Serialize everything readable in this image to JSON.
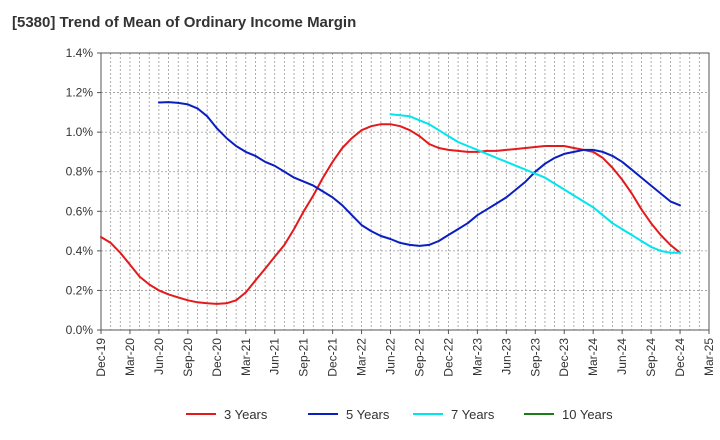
{
  "chart_data": {
    "type": "line",
    "title": "[5380]  Trend of Mean of Ordinary Income Margin",
    "xlabel": "",
    "ylabel": "",
    "ylim": [
      0,
      0.014
    ],
    "y_ticks": [
      0,
      0.002,
      0.004,
      0.006,
      0.008,
      0.01,
      0.012,
      0.014
    ],
    "y_tick_labels": [
      "0.0%",
      "0.2%",
      "0.4%",
      "0.6%",
      "0.8%",
      "1.0%",
      "1.2%",
      "1.4%"
    ],
    "x_tick_labels": [
      "Dec-19",
      "Mar-20",
      "Jun-20",
      "Sep-20",
      "Dec-20",
      "Mar-21",
      "Jun-21",
      "Sep-21",
      "Dec-21",
      "Mar-22",
      "Jun-22",
      "Sep-22",
      "Dec-22",
      "Mar-23",
      "Jun-23",
      "Sep-23",
      "Dec-23",
      "Mar-24",
      "Jun-24",
      "Sep-24",
      "Dec-24",
      "Mar-25"
    ],
    "grid": true,
    "legend_position": "bottom",
    "series": [
      {
        "name": "3 Years",
        "color": "#e31a1c",
        "x": [
          "Dec-19",
          "Jan-20",
          "Feb-20",
          "Mar-20",
          "Apr-20",
          "May-20",
          "Jun-20",
          "Jul-20",
          "Aug-20",
          "Sep-20",
          "Oct-20",
          "Nov-20",
          "Dec-20",
          "Jan-21",
          "Feb-21",
          "Mar-21",
          "Apr-21",
          "May-21",
          "Jun-21",
          "Jul-21",
          "Aug-21",
          "Sep-21",
          "Oct-21",
          "Nov-21",
          "Dec-21",
          "Jan-22",
          "Feb-22",
          "Mar-22",
          "Apr-22",
          "May-22",
          "Jun-22",
          "Jul-22",
          "Aug-22",
          "Sep-22",
          "Oct-22",
          "Nov-22",
          "Dec-22",
          "Jan-23",
          "Feb-23",
          "Mar-23",
          "Apr-23",
          "May-23",
          "Jun-23",
          "Jul-23",
          "Aug-23",
          "Sep-23",
          "Oct-23",
          "Nov-23",
          "Dec-23",
          "Jan-24",
          "Feb-24",
          "Mar-24",
          "Apr-24",
          "May-24",
          "Jun-24",
          "Jul-24",
          "Aug-24",
          "Sep-24",
          "Oct-24",
          "Nov-24",
          "Dec-24"
        ],
        "values": [
          0.0047,
          0.0044,
          0.0039,
          0.0033,
          0.0027,
          0.0023,
          0.002,
          0.0018,
          0.00165,
          0.0015,
          0.0014,
          0.00135,
          0.00132,
          0.00135,
          0.0015,
          0.0019,
          0.0025,
          0.0031,
          0.0037,
          0.0043,
          0.0051,
          0.006,
          0.0068,
          0.0077,
          0.0085,
          0.0092,
          0.0097,
          0.0101,
          0.0103,
          0.0104,
          0.0104,
          0.0103,
          0.0101,
          0.0098,
          0.0094,
          0.0092,
          0.0091,
          0.00905,
          0.009,
          0.009,
          0.00905,
          0.00905,
          0.0091,
          0.00915,
          0.0092,
          0.00925,
          0.0093,
          0.0093,
          0.0093,
          0.0092,
          0.0091,
          0.009,
          0.0087,
          0.0082,
          0.0076,
          0.0069,
          0.0061,
          0.0054,
          0.0048,
          0.0043,
          0.0039
        ]
      },
      {
        "name": "5 Years",
        "color": "#0a1fbf",
        "x": [
          "Jun-20",
          "Jul-20",
          "Aug-20",
          "Sep-20",
          "Oct-20",
          "Nov-20",
          "Dec-20",
          "Jan-21",
          "Feb-21",
          "Mar-21",
          "Apr-21",
          "May-21",
          "Jun-21",
          "Jul-21",
          "Aug-21",
          "Sep-21",
          "Oct-21",
          "Nov-21",
          "Dec-21",
          "Jan-22",
          "Feb-22",
          "Mar-22",
          "Apr-22",
          "May-22",
          "Jun-22",
          "Jul-22",
          "Aug-22",
          "Sep-22",
          "Oct-22",
          "Nov-22",
          "Dec-22",
          "Jan-23",
          "Feb-23",
          "Mar-23",
          "Apr-23",
          "May-23",
          "Jun-23",
          "Jul-23",
          "Aug-23",
          "Sep-23",
          "Oct-23",
          "Nov-23",
          "Dec-23",
          "Jan-24",
          "Feb-24",
          "Mar-24",
          "Apr-24",
          "May-24",
          "Jun-24",
          "Jul-24",
          "Aug-24",
          "Sep-24",
          "Oct-24",
          "Nov-24",
          "Dec-24"
        ],
        "values": [
          0.0115,
          0.01152,
          0.01148,
          0.0114,
          0.0112,
          0.0108,
          0.0102,
          0.0097,
          0.0093,
          0.009,
          0.0088,
          0.0085,
          0.0083,
          0.008,
          0.0077,
          0.0075,
          0.0073,
          0.007,
          0.0067,
          0.0063,
          0.0058,
          0.0053,
          0.005,
          0.00475,
          0.0046,
          0.0044,
          0.0043,
          0.00425,
          0.0043,
          0.0045,
          0.0048,
          0.0051,
          0.0054,
          0.0058,
          0.0061,
          0.0064,
          0.0067,
          0.0071,
          0.0075,
          0.008,
          0.0084,
          0.0087,
          0.0089,
          0.009,
          0.0091,
          0.0091,
          0.009,
          0.0088,
          0.0085,
          0.0081,
          0.0077,
          0.0073,
          0.0069,
          0.0065,
          0.0063
        ]
      },
      {
        "name": "7 Years",
        "color": "#00e5ee",
        "x": [
          "Jun-22",
          "Jul-22",
          "Aug-22",
          "Sep-22",
          "Oct-22",
          "Nov-22",
          "Dec-22",
          "Jan-23",
          "Feb-23",
          "Mar-23",
          "Apr-23",
          "May-23",
          "Jun-23",
          "Jul-23",
          "Aug-23",
          "Sep-23",
          "Oct-23",
          "Nov-23",
          "Dec-23",
          "Jan-24",
          "Feb-24",
          "Mar-24",
          "Apr-24",
          "May-24",
          "Jun-24",
          "Jul-24",
          "Aug-24",
          "Sep-24",
          "Oct-24",
          "Nov-24",
          "Dec-24"
        ],
        "values": [
          0.0109,
          0.01085,
          0.0108,
          0.0106,
          0.0104,
          0.0101,
          0.0098,
          0.0095,
          0.0093,
          0.0091,
          0.0089,
          0.0087,
          0.0085,
          0.0083,
          0.0081,
          0.0079,
          0.0077,
          0.0074,
          0.0071,
          0.0068,
          0.0065,
          0.0062,
          0.0058,
          0.0054,
          0.0051,
          0.0048,
          0.0045,
          0.0042,
          0.004,
          0.0039,
          0.0039
        ]
      },
      {
        "name": "10 Years",
        "color": "#1a7d1a",
        "x": [],
        "values": []
      }
    ]
  }
}
